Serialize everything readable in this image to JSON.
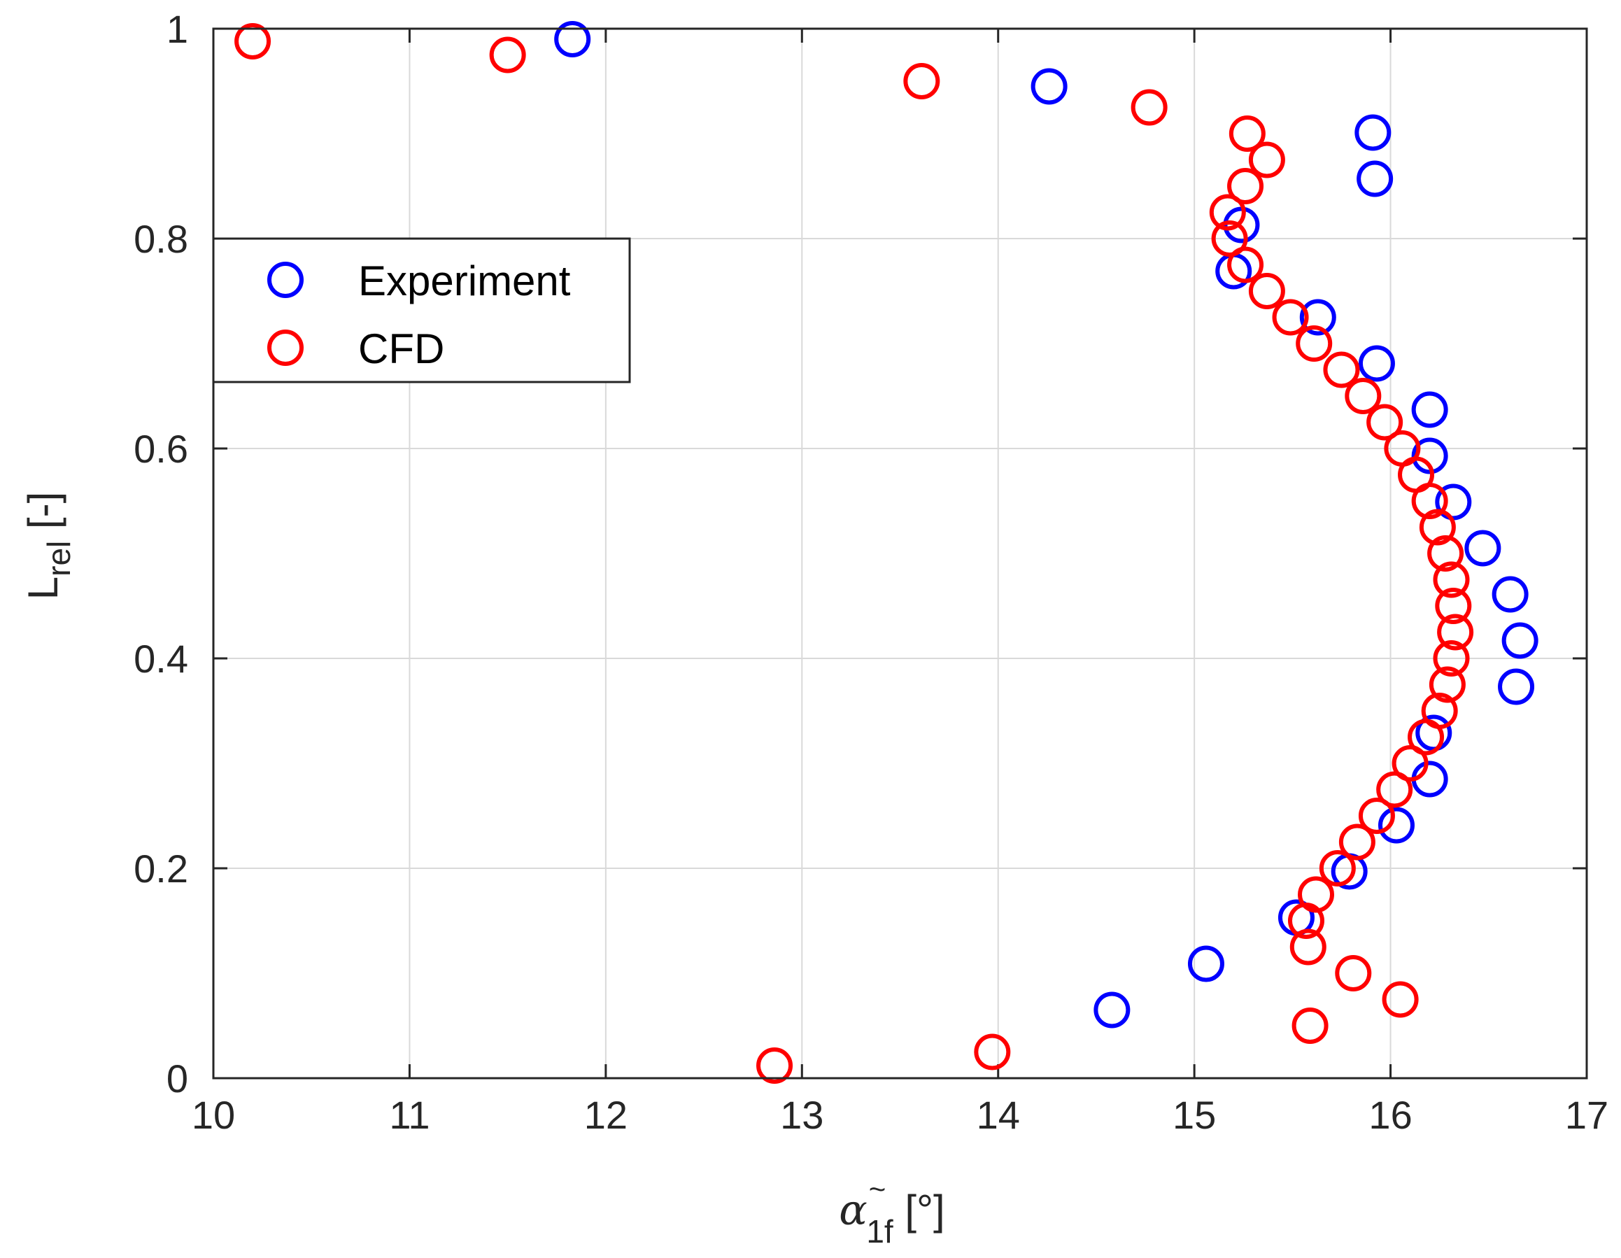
{
  "chart_data": {
    "type": "scatter",
    "title": "",
    "xlabel": {
      "symbol": "α",
      "tilde": "~",
      "subscript": "1f",
      "unit": " [°]"
    },
    "ylabel": {
      "main": "L",
      "subscript": "rel",
      "unit": " [-]"
    },
    "xlim": [
      10,
      17
    ],
    "ylim": [
      0,
      1
    ],
    "xticks": [
      10,
      11,
      12,
      13,
      14,
      15,
      16,
      17
    ],
    "yticks": [
      0,
      0.2,
      0.4,
      0.6,
      0.8,
      1
    ],
    "xtick_labels": [
      "10",
      "11",
      "12",
      "13",
      "14",
      "15",
      "16",
      "17"
    ],
    "ytick_labels": [
      "0",
      "0.2",
      "0.4",
      "0.6",
      "0.8",
      "1"
    ],
    "grid": true,
    "legend_position": "upper-left",
    "series": [
      {
        "name": "Experiment",
        "color": "#0000ff",
        "marker": "circle-open",
        "points": [
          [
            11.83,
            0.99
          ],
          [
            14.26,
            0.945
          ],
          [
            15.91,
            0.901
          ],
          [
            15.92,
            0.857
          ],
          [
            15.24,
            0.813
          ],
          [
            15.2,
            0.769
          ],
          [
            15.63,
            0.725
          ],
          [
            15.93,
            0.681
          ],
          [
            16.2,
            0.637
          ],
          [
            16.2,
            0.593
          ],
          [
            16.32,
            0.549
          ],
          [
            16.47,
            0.505
          ],
          [
            16.61,
            0.461
          ],
          [
            16.66,
            0.417
          ],
          [
            16.64,
            0.373
          ],
          [
            16.22,
            0.329
          ],
          [
            16.2,
            0.285
          ],
          [
            16.03,
            0.241
          ],
          [
            15.79,
            0.197
          ],
          [
            15.52,
            0.153
          ],
          [
            15.06,
            0.109
          ],
          [
            14.58,
            0.065
          ]
        ]
      },
      {
        "name": "CFD",
        "color": "#ff0000",
        "marker": "circle-open",
        "points": [
          [
            10.2,
            0.988
          ],
          [
            11.5,
            0.975
          ],
          [
            13.61,
            0.95
          ],
          [
            14.77,
            0.925
          ],
          [
            15.27,
            0.9
          ],
          [
            15.37,
            0.875
          ],
          [
            15.26,
            0.85
          ],
          [
            15.17,
            0.825
          ],
          [
            15.18,
            0.8
          ],
          [
            15.26,
            0.775
          ],
          [
            15.37,
            0.75
          ],
          [
            15.49,
            0.725
          ],
          [
            15.61,
            0.7
          ],
          [
            15.75,
            0.675
          ],
          [
            15.86,
            0.65
          ],
          [
            15.97,
            0.625
          ],
          [
            16.06,
            0.6
          ],
          [
            16.13,
            0.575
          ],
          [
            16.2,
            0.55
          ],
          [
            16.24,
            0.525
          ],
          [
            16.28,
            0.5
          ],
          [
            16.31,
            0.475
          ],
          [
            16.32,
            0.45
          ],
          [
            16.33,
            0.425
          ],
          [
            16.31,
            0.4
          ],
          [
            16.29,
            0.375
          ],
          [
            16.25,
            0.35
          ],
          [
            16.18,
            0.325
          ],
          [
            16.1,
            0.3
          ],
          [
            16.02,
            0.275
          ],
          [
            15.93,
            0.25
          ],
          [
            15.83,
            0.225
          ],
          [
            15.73,
            0.2
          ],
          [
            15.62,
            0.175
          ],
          [
            15.57,
            0.15
          ],
          [
            15.58,
            0.125
          ],
          [
            15.81,
            0.1
          ],
          [
            16.05,
            0.075
          ],
          [
            15.59,
            0.05
          ],
          [
            13.97,
            0.025
          ],
          [
            12.86,
            0.012
          ]
        ]
      }
    ]
  }
}
